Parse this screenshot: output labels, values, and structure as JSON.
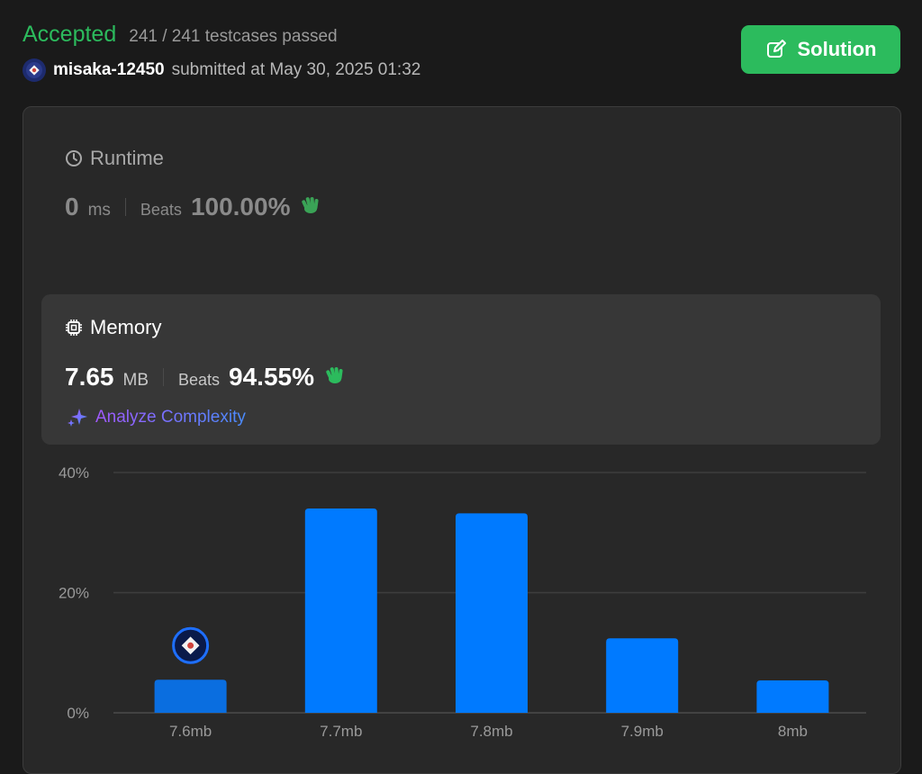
{
  "header": {
    "status": "Accepted",
    "testcases": "241 / 241 testcases passed",
    "username": "misaka-12450",
    "submitted": "submitted at May 30, 2025 01:32",
    "solution_label": "Solution"
  },
  "runtime": {
    "title": "Runtime",
    "value": "0",
    "unit": "ms",
    "beats_label": "Beats",
    "beats_value": "100.00%"
  },
  "memory": {
    "title": "Memory",
    "value": "7.65",
    "unit": "MB",
    "beats_label": "Beats",
    "beats_value": "94.55%",
    "analyze_label": "Analyze Complexity"
  },
  "colors": {
    "accent_green": "#2cbb5d",
    "bar_blue": "#007aff",
    "bar_highlight": "#0a6ee0",
    "background": "#1a1a1a",
    "card": "#282828"
  },
  "chart_data": {
    "type": "bar",
    "categories": [
      "7.6mb",
      "7.7mb",
      "7.8mb",
      "7.9mb",
      "8mb"
    ],
    "values": [
      5.5,
      34,
      33.2,
      12.4,
      5.4
    ],
    "y_ticks": [
      "0%",
      "20%",
      "40%"
    ],
    "ylim": [
      0,
      40
    ],
    "highlight_index": 0,
    "grid": true
  }
}
